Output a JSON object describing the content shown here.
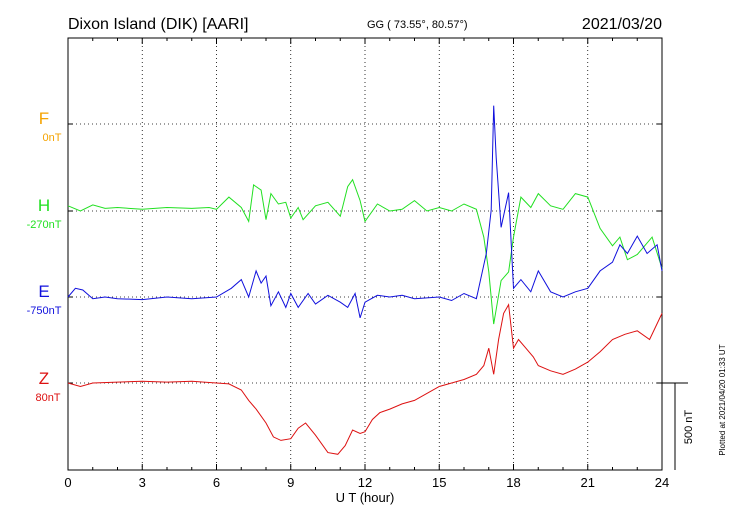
{
  "header": {
    "station": "Dixon Island (DIK)  [AARI]",
    "coords": "GG ( 73.55°,  80.57°)",
    "date": "2021/03/20"
  },
  "side_note": "Plotted at 2021/04/20 01:33 UT",
  "scale_label": "500 nT",
  "colors": {
    "F": "#f5a300",
    "H": "#22e022",
    "E": "#1010dd",
    "Z": "#dd1111"
  },
  "chart_data": {
    "type": "line",
    "xlabel": "U T (hour)",
    "xlim": [
      0,
      24
    ],
    "x_ticks": [
      0,
      3,
      6,
      9,
      12,
      15,
      18,
      21,
      24
    ],
    "x_tick_labels": [
      "0",
      "3",
      "6",
      "9",
      "12",
      "15",
      "18",
      "21",
      "24"
    ],
    "grid": true,
    "channels": [
      {
        "id": "F",
        "label": "F",
        "offset": "0nT"
      },
      {
        "id": "H",
        "label": "H",
        "offset": "-270nT"
      },
      {
        "id": "E",
        "label": "E",
        "offset": "-750nT"
      },
      {
        "id": "Z",
        "label": "Z",
        "offset": "80nT"
      }
    ],
    "scale_bar_nT": 500,
    "series": [
      {
        "name": "H",
        "x": [
          0,
          0.5,
          1,
          1.5,
          2,
          3,
          4,
          5,
          5.7,
          6,
          6.5,
          7,
          7.3,
          7.5,
          7.8,
          8,
          8.2,
          8.5,
          8.8,
          9,
          9.3,
          9.5,
          10,
          10.5,
          11,
          11.3,
          11.5,
          11.8,
          12,
          12.5,
          13,
          13.5,
          14,
          14.5,
          15,
          15.5,
          16,
          16.5,
          16.8,
          17,
          17.2,
          17.5,
          17.8,
          18,
          18.3,
          18.7,
          19,
          19.5,
          20,
          20.5,
          21,
          21.5,
          22,
          22.3,
          22.6,
          23,
          23.3,
          23.6,
          24
        ],
        "values": [
          30,
          0,
          35,
          15,
          20,
          10,
          20,
          15,
          20,
          10,
          80,
          20,
          -60,
          150,
          120,
          -50,
          100,
          40,
          50,
          -40,
          20,
          -50,
          30,
          50,
          -30,
          140,
          180,
          60,
          -60,
          40,
          0,
          10,
          60,
          0,
          20,
          0,
          40,
          10,
          -150,
          -350,
          -650,
          -400,
          -350,
          -150,
          80,
          20,
          100,
          30,
          10,
          100,
          80,
          -100,
          -200,
          -150,
          -280,
          -250,
          -200,
          -150,
          -330
        ]
      },
      {
        "name": "E",
        "x": [
          0,
          0.3,
          0.6,
          1,
          1.5,
          2,
          3,
          4,
          5,
          6,
          6.6,
          7,
          7.3,
          7.6,
          7.8,
          8,
          8.2,
          8.5,
          8.8,
          9,
          9.3,
          9.7,
          10,
          10.5,
          11,
          11.3,
          11.6,
          11.8,
          12,
          12.5,
          13,
          13.5,
          14,
          15,
          15.5,
          16,
          16.5,
          16.9,
          17.1,
          17.2,
          17.3,
          17.5,
          17.8,
          18,
          18.3,
          18.7,
          19,
          19.5,
          20,
          20.5,
          21,
          21.5,
          22,
          22.3,
          22.6,
          23,
          23.4,
          23.8,
          24
        ],
        "values": [
          0,
          50,
          40,
          -10,
          0,
          -10,
          -15,
          0,
          -10,
          0,
          50,
          100,
          0,
          150,
          80,
          120,
          -50,
          30,
          -60,
          20,
          -60,
          20,
          -40,
          10,
          -30,
          -60,
          20,
          -120,
          -30,
          10,
          0,
          10,
          -10,
          0,
          -20,
          20,
          -10,
          250,
          500,
          1100,
          800,
          400,
          600,
          50,
          100,
          30,
          150,
          30,
          0,
          30,
          50,
          150,
          200,
          300,
          250,
          350,
          250,
          300,
          150
        ]
      },
      {
        "name": "Z",
        "x": [
          0,
          0.5,
          1,
          2,
          3,
          4,
          5,
          6,
          6.5,
          7,
          7.3,
          7.6,
          8,
          8.3,
          8.6,
          9,
          9.3,
          9.6,
          10,
          10.5,
          10.9,
          11.2,
          11.5,
          11.8,
          12,
          12.3,
          12.6,
          13,
          13.5,
          14,
          14.5,
          15,
          15.5,
          16,
          16.5,
          16.8,
          17,
          17.2,
          17.4,
          17.6,
          17.8,
          18,
          18.2,
          18.5,
          18.8,
          19,
          19.5,
          20,
          20.5,
          21,
          21.5,
          22,
          22.5,
          23,
          23.5,
          24
        ],
        "values": [
          0,
          -20,
          0,
          5,
          10,
          5,
          10,
          0,
          -5,
          -40,
          -100,
          -150,
          -230,
          -310,
          -330,
          -320,
          -260,
          -230,
          -300,
          -400,
          -410,
          -360,
          -270,
          -290,
          -280,
          -210,
          -170,
          -150,
          -120,
          -100,
          -60,
          -20,
          0,
          20,
          50,
          100,
          200,
          50,
          250,
          400,
          450,
          200,
          250,
          200,
          150,
          100,
          70,
          50,
          80,
          120,
          180,
          250,
          280,
          300,
          250,
          400
        ]
      }
    ]
  }
}
